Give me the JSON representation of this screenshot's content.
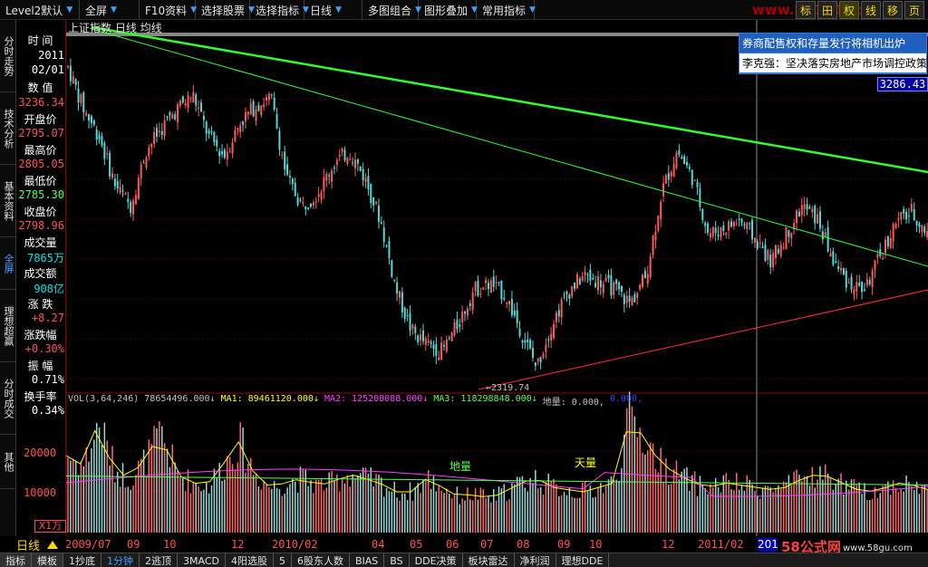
{
  "toolbar": {
    "items": [
      {
        "label": "Level2默认"
      },
      {
        "label": "全屏"
      },
      {
        "label": "F10资料"
      },
      {
        "label": "选择股票"
      },
      {
        "label": "选择指标"
      },
      {
        "label": "日线"
      },
      {
        "label": "多图组合"
      },
      {
        "label": "图形叠加"
      },
      {
        "label": "常用指标"
      }
    ],
    "right_buttons": [
      "标",
      "田",
      "权",
      "线",
      "移",
      "页"
    ],
    "watermark": "www.58180.com"
  },
  "left_tabs": [
    "分时走势",
    "技术分析",
    "基本资料",
    "全屏",
    "理想超赢",
    "分时成交",
    "其他"
  ],
  "info": {
    "time_label": "时 间",
    "year": "2011",
    "date": "02/01",
    "value_label": "数 值",
    "value": "3236.34",
    "open_label": "开盘价",
    "open": "2795.07",
    "high_label": "最高价",
    "high": "2805.05",
    "low_label": "最低价",
    "low": "2785.30",
    "close_label": "收盘价",
    "close": "2798.96",
    "vol_label": "成交量",
    "vol": "7865万",
    "amt_label": "成交额",
    "amt": "908亿",
    "chg_label": "涨 跌",
    "chg": "+8.27",
    "chgpct_label": "涨跌幅",
    "chgpct": "+0.30%",
    "amp_label": "振 幅",
    "amp": "0.71%",
    "turn_label": "换手率",
    "turn": "0.34%"
  },
  "chart": {
    "title": "上证指数 日线 均线",
    "price_label": "3286.43",
    "low_label": "←2319.74",
    "news": [
      "券商配售权和存量发行将相机出炉",
      "李克强：坚决落实房地产市场调控政策"
    ]
  },
  "volume": {
    "header": [
      {
        "t": "VOL(3,64,246)",
        "c": "#c0c0c0"
      },
      {
        "t": "78654496.000↓",
        "c": "#c0c0c0"
      },
      {
        "t": "MA1: 89461120.000↓",
        "c": "#ffff00"
      },
      {
        "t": "MA2: 125208088.000↓",
        "c": "#ff40ff"
      },
      {
        "t": "MA3: 118298848.000↓",
        "c": "#50ff50"
      },
      {
        "t": "地量: 0.000,",
        "c": "#c0c0c0"
      },
      {
        "t": "0.000,",
        "c": "#4040ff"
      }
    ],
    "ann_low": "地量",
    "ann_high": "天量",
    "y_labels": [
      "20000",
      "10000"
    ],
    "units": "X1万"
  },
  "xaxis": {
    "period": "日线",
    "labels": [
      "2009/07",
      "09",
      "10",
      "12",
      "2010/02",
      "04",
      "05",
      "06",
      "07",
      "08",
      "09",
      "10",
      "12",
      "2011/02"
    ],
    "year_box": "201"
  },
  "bottom_watermark": "58公式网",
  "bottom_watermark2": "www.58gu.com",
  "bottom_tabs": [
    "指标",
    "模板",
    "1抄底",
    "1分钟",
    "2逃顶",
    "3MACD",
    "4阳选股",
    "5",
    "6股东人数",
    "BIAS",
    "BS",
    "DDE决策",
    "板块雷达",
    "净利润",
    "理想DDE"
  ],
  "chart_data": {
    "type": "candlestick",
    "price_axis_value": 3286.43,
    "annotated_low": 2319.74,
    "volume_y_ticks": [
      20000,
      10000
    ],
    "x_ticks": [
      "2009/07",
      "09",
      "10",
      "12",
      "2010/02",
      "04",
      "05",
      "06",
      "07",
      "08",
      "09",
      "10",
      "12",
      "2011/02"
    ],
    "last_bar": {
      "date": "2011/02/01",
      "open": 2795.07,
      "high": 2805.05,
      "low": 2785.3,
      "close": 2798.96,
      "volume_wan": 7865,
      "amount_yi": 908
    },
    "close_path": [
      3400,
      3250,
      3150,
      2980,
      2900,
      3100,
      3180,
      3250,
      3300,
      3150,
      3080,
      3200,
      3260,
      3290,
      3000,
      2900,
      2950,
      3050,
      3100,
      3000,
      2850,
      2600,
      2450,
      2400,
      2380,
      2480,
      2600,
      2620,
      2580,
      2450,
      2320,
      2480,
      2590,
      2650,
      2630,
      2600,
      2550,
      2650,
      2950,
      3100,
      3000,
      2800,
      2820,
      2850,
      2780,
      2700,
      2800,
      2900,
      2850,
      2700,
      2620,
      2600,
      2720,
      2840,
      2880,
      2800
    ],
    "volume_path": [
      17000,
      15000,
      24000,
      14000,
      12000,
      16000,
      22000,
      13000,
      11000,
      10500,
      15000,
      20000,
      13000,
      10000,
      11000,
      12000,
      10500,
      11000,
      13000,
      12000,
      11000,
      9000,
      9000,
      12000,
      10000,
      8000,
      8500,
      7500,
      9000,
      11000,
      12000,
      10000,
      9500,
      9000,
      10000,
      11000,
      26000,
      20000,
      15000,
      13000,
      11000,
      10000,
      11000,
      10500,
      10000,
      9500,
      10000,
      12000,
      13000,
      12000,
      10000,
      9000,
      9500,
      11000,
      10500,
      9500
    ]
  }
}
